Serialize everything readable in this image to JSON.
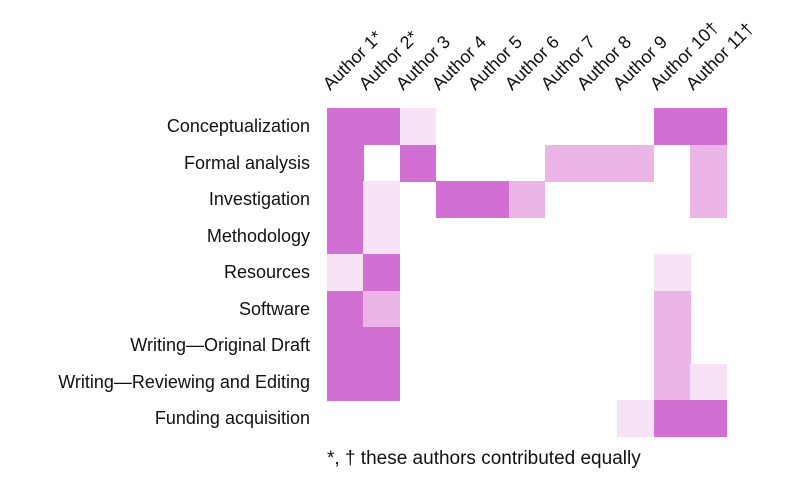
{
  "chart_data": {
    "type": "heatmap",
    "title": "",
    "xlabel": "",
    "ylabel": "",
    "rows": [
      "Conceptualization",
      "Formal analysis",
      "Investigation",
      "Methodology",
      "Resources",
      "Software",
      "Writing—Original Draft",
      "Writing—Reviewing and Editing",
      "Funding acquisition"
    ],
    "columns": [
      "Author 1*",
      "Author 2*",
      "Author 3",
      "Author 4",
      "Author 5",
      "Author 6",
      "Author 7",
      "Author 8",
      "Author 9",
      "Author 10†",
      "Author 11†"
    ],
    "matrix": [
      [
        3,
        3,
        1,
        0,
        0,
        0,
        0,
        0,
        0,
        3,
        3
      ],
      [
        3,
        0,
        3,
        0,
        0,
        0,
        2,
        2,
        2,
        0,
        2
      ],
      [
        3,
        1,
        0,
        3,
        3,
        2,
        0,
        0,
        0,
        0,
        2
      ],
      [
        3,
        1,
        0,
        0,
        0,
        0,
        0,
        0,
        0,
        0,
        0
      ],
      [
        1,
        3,
        0,
        0,
        0,
        0,
        0,
        0,
        0,
        1,
        0
      ],
      [
        3,
        2,
        0,
        0,
        0,
        0,
        0,
        0,
        0,
        2,
        0
      ],
      [
        3,
        3,
        0,
        0,
        0,
        0,
        0,
        0,
        0,
        2,
        0
      ],
      [
        3,
        3,
        0,
        0,
        0,
        0,
        0,
        0,
        0,
        2,
        1
      ],
      [
        0,
        0,
        0,
        0,
        0,
        0,
        0,
        0,
        1,
        3,
        3
      ]
    ],
    "levels": {
      "1": "#F8E3F6",
      "2": "#EBB5E8",
      "3": "#D26FD2"
    },
    "background_color": "#FFFFFF",
    "text_color": "#111111",
    "column_label_rotation_deg": 45,
    "grid": "off",
    "legend": "none",
    "footnote": "*, † these authors contributed equally"
  }
}
